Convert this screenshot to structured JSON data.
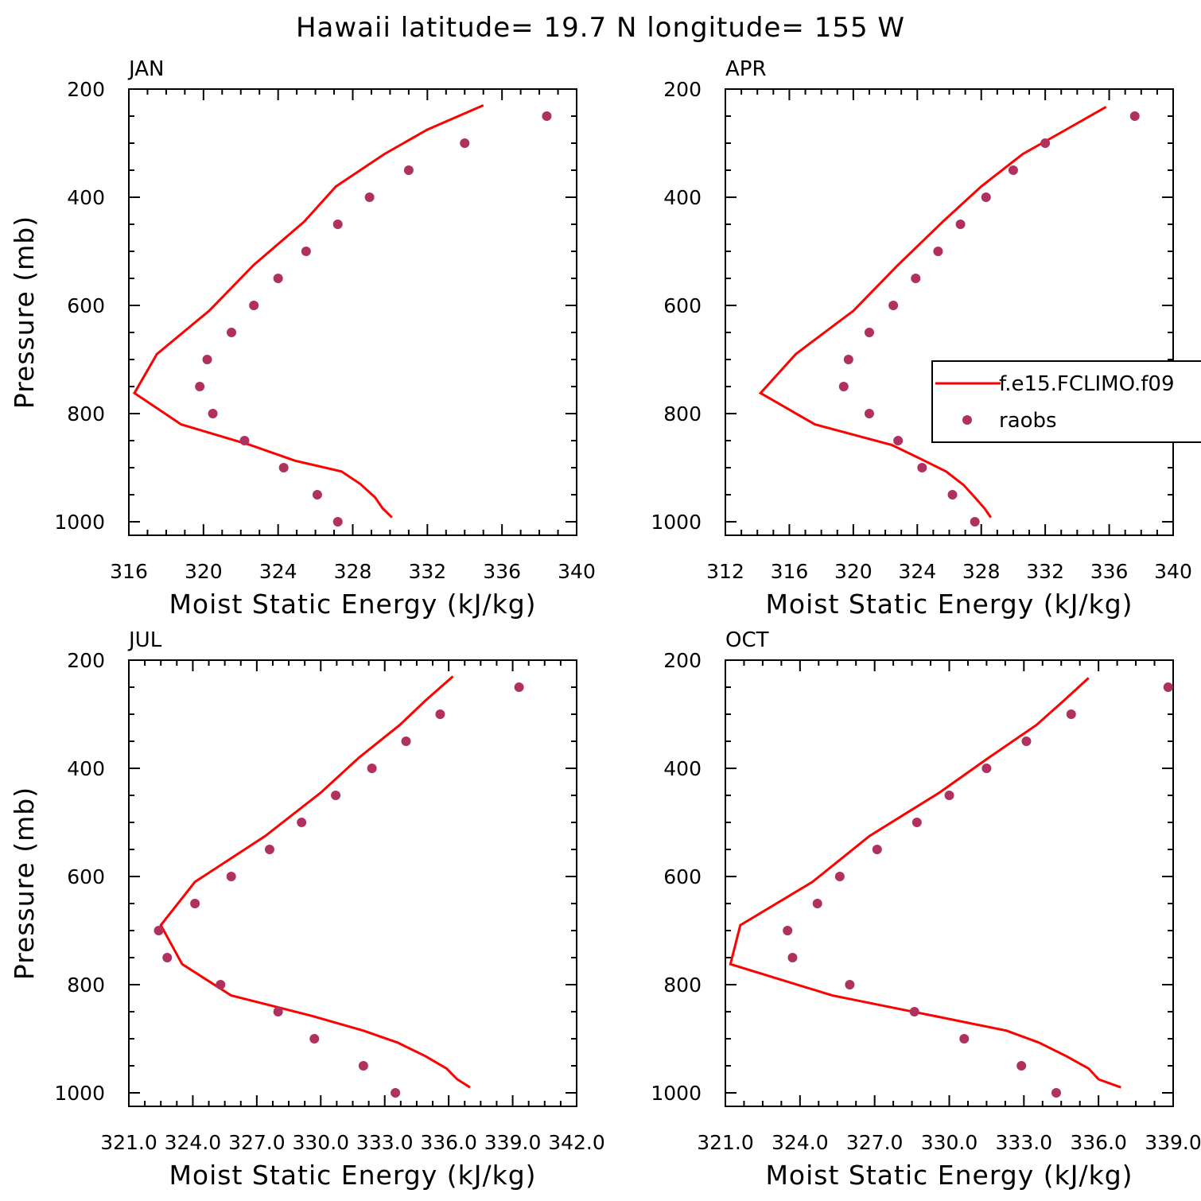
{
  "title": "Hawaii  latitude= 19.7 N longitude= 155 W",
  "chart_data": [
    {
      "type": "line",
      "panel": "JAN",
      "xlabel": "Moist Static Energy (kJ/kg)",
      "ylabel": "Pressure (mb)",
      "xlim": [
        316,
        340
      ],
      "ylim": [
        1025,
        200
      ],
      "yscale": "linear-inverted",
      "xticks": [
        "316",
        "320",
        "324",
        "328",
        "332",
        "336",
        "340"
      ],
      "yticks": [
        "200",
        "400",
        "600",
        "800",
        "1000"
      ],
      "legend": false,
      "series": [
        {
          "name": "f.e15.FCLIMO.f09",
          "kind": "line",
          "color": "#ff0000",
          "x": [
            330.1,
            329.6,
            329.2,
            328.4,
            327.4,
            324.9,
            322.5,
            318.8,
            316.3,
            317.5,
            320.3,
            322.7,
            325.4,
            327.1,
            329.7,
            332.0,
            335.0
          ],
          "y": [
            992,
            975,
            955,
            930,
            907,
            887,
            858,
            820,
            762,
            690,
            610,
            525,
            445,
            380,
            320,
            275,
            230
          ]
        },
        {
          "name": "raobs",
          "kind": "scatter",
          "color": "#b03060",
          "x": [
            327.2,
            326.1,
            324.3,
            322.2,
            320.5,
            319.8,
            320.2,
            321.5,
            322.7,
            324.0,
            325.5,
            327.2,
            328.9,
            331.0,
            334.0,
            338.4
          ],
          "y": [
            1000,
            950,
            900,
            850,
            800,
            750,
            700,
            650,
            600,
            550,
            500,
            450,
            400,
            350,
            300,
            250
          ]
        }
      ]
    },
    {
      "type": "line",
      "panel": "APR",
      "xlabel": "Moist Static Energy (kJ/kg)",
      "ylabel": "",
      "xlim": [
        312,
        340
      ],
      "ylim": [
        1025,
        200
      ],
      "yscale": "linear-inverted",
      "xticks": [
        "312",
        "316",
        "320",
        "324",
        "328",
        "332",
        "336",
        "340"
      ],
      "yticks": [
        "200",
        "400",
        "600",
        "800",
        "1000"
      ],
      "legend": true,
      "legend_position": "right",
      "series": [
        {
          "name": "f.e15.FCLIMO.f09",
          "kind": "line",
          "color": "#ff0000",
          "x": [
            328.6,
            328.2,
            327.6,
            326.9,
            325.8,
            324.3,
            322.4,
            317.6,
            314.2,
            316.4,
            320.0,
            322.8,
            325.6,
            328.0,
            330.6,
            333.3,
            335.8
          ],
          "y": [
            992,
            975,
            955,
            932,
            907,
            885,
            858,
            820,
            762,
            690,
            610,
            525,
            445,
            380,
            320,
            275,
            233
          ]
        },
        {
          "name": "raobs",
          "kind": "scatter",
          "color": "#b03060",
          "x": [
            327.6,
            326.2,
            324.3,
            322.8,
            321.0,
            319.4,
            319.7,
            321.0,
            322.5,
            323.9,
            325.3,
            326.7,
            328.3,
            330.0,
            332.0,
            337.6
          ],
          "y": [
            1000,
            950,
            900,
            850,
            800,
            750,
            700,
            650,
            600,
            550,
            500,
            450,
            400,
            350,
            300,
            250
          ]
        }
      ]
    },
    {
      "type": "line",
      "panel": "JUL",
      "xlabel": "Moist Static Energy (kJ/kg)",
      "ylabel": "Pressure (mb)",
      "xlim": [
        321.0,
        342.0
      ],
      "ylim": [
        1025,
        200
      ],
      "yscale": "linear-inverted",
      "xticks": [
        "321.0",
        "324.0",
        "327.0",
        "330.0",
        "333.0",
        "336.0",
        "339.0",
        "342.0"
      ],
      "yticks": [
        "200",
        "400",
        "600",
        "800",
        "1000"
      ],
      "legend": false,
      "series": [
        {
          "name": "f.e15.FCLIMO.f09",
          "kind": "line",
          "color": "#ff0000",
          "x": [
            337.0,
            336.4,
            335.9,
            334.9,
            333.6,
            332.0,
            329.6,
            325.8,
            323.5,
            322.5,
            324.1,
            327.4,
            330.0,
            331.8,
            333.7,
            334.9,
            336.2
          ],
          "y": [
            990,
            975,
            955,
            932,
            907,
            885,
            858,
            820,
            762,
            690,
            610,
            525,
            445,
            380,
            320,
            275,
            230
          ]
        },
        {
          "name": "raobs",
          "kind": "scatter",
          "color": "#b03060",
          "x": [
            333.5,
            332.0,
            329.7,
            328.0,
            325.3,
            322.8,
            322.4,
            324.1,
            325.8,
            327.6,
            329.1,
            330.7,
            332.4,
            334.0,
            335.6,
            339.3
          ],
          "y": [
            1000,
            950,
            900,
            850,
            800,
            750,
            700,
            650,
            600,
            550,
            500,
            450,
            400,
            350,
            300,
            250
          ]
        }
      ]
    },
    {
      "type": "line",
      "panel": "OCT",
      "xlabel": "Moist Static Energy (kJ/kg)",
      "ylabel": "",
      "xlim": [
        321.0,
        339.0
      ],
      "ylim": [
        1025,
        200
      ],
      "yscale": "linear-inverted",
      "xticks": [
        "321.0",
        "324.0",
        "327.0",
        "330.0",
        "333.0",
        "336.0",
        "339.0"
      ],
      "yticks": [
        "200",
        "400",
        "600",
        "800",
        "1000"
      ],
      "legend": false,
      "series": [
        {
          "name": "f.e15.FCLIMO.f09",
          "kind": "line",
          "color": "#ff0000",
          "x": [
            336.9,
            336.0,
            335.6,
            334.7,
            333.6,
            332.3,
            329.4,
            325.3,
            321.2,
            321.6,
            324.5,
            326.8,
            329.6,
            331.6,
            333.5,
            334.6,
            335.6
          ],
          "y": [
            990,
            975,
            955,
            932,
            907,
            885,
            858,
            820,
            762,
            690,
            610,
            525,
            445,
            380,
            320,
            275,
            233
          ]
        },
        {
          "name": "raobs",
          "kind": "scatter",
          "color": "#b03060",
          "x": [
            334.3,
            332.9,
            330.6,
            328.6,
            326.0,
            323.7,
            323.5,
            324.7,
            325.6,
            327.1,
            328.7,
            330.0,
            331.5,
            333.1,
            334.9,
            338.8
          ],
          "y": [
            1000,
            950,
            900,
            850,
            800,
            750,
            700,
            650,
            600,
            550,
            500,
            450,
            400,
            350,
            300,
            250
          ]
        }
      ]
    }
  ]
}
